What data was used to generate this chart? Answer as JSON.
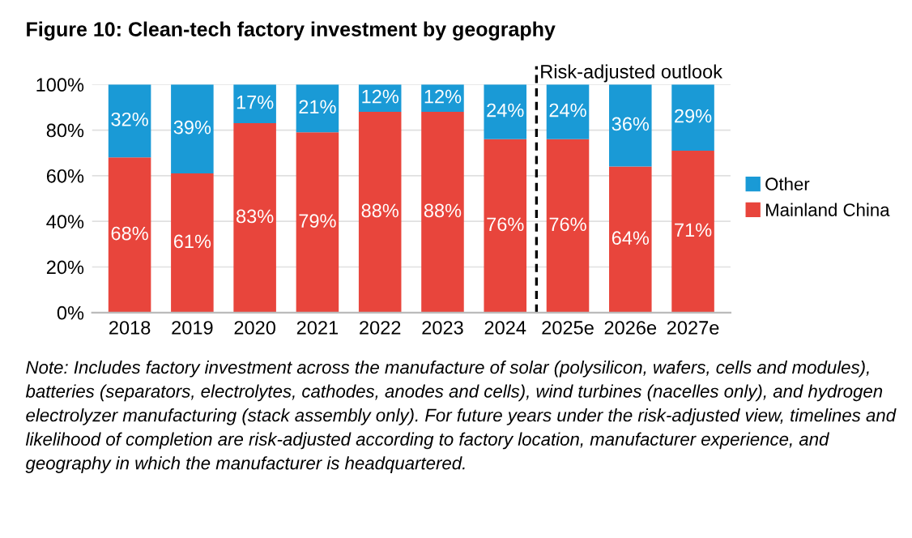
{
  "chart_data": {
    "type": "bar",
    "title": "Figure 10: Clean-tech factory investment by geography",
    "stacked": true,
    "x": [
      2018,
      2019,
      2020,
      2021,
      2022,
      2023,
      2024,
      2025,
      2026,
      2027
    ],
    "xlim": [
      2017.4,
      2027.6
    ],
    "xticks": [
      2018,
      2019,
      2020,
      2021,
      2022,
      2023,
      2024,
      {
        "value": 2025,
        "label": "2025e"
      },
      {
        "value": 2026,
        "label": "2026e"
      },
      {
        "value": 2027,
        "label": "2027e"
      }
    ],
    "series": [
      {
        "name": "Mainland China",
        "color": "#e8453c",
        "values": [
          68,
          61,
          83,
          79,
          88,
          88,
          76,
          76,
          64,
          71
        ],
        "value_labels": [
          "68%",
          "61%",
          "83%",
          "79%",
          "88%",
          "88%",
          "76%",
          "76%",
          "64%",
          "71%"
        ]
      },
      {
        "name": "Other",
        "color": "#1a9ad6",
        "values": [
          32,
          39,
          17,
          21,
          12,
          12,
          24,
          24,
          36,
          29
        ],
        "value_labels": [
          "32%",
          "39%",
          "17%",
          "21%",
          "12%",
          "12%",
          "24%",
          "24%",
          "36%",
          "29%"
        ]
      }
    ],
    "ylim": [
      0,
      100
    ],
    "yticks": [
      {
        "value": 0,
        "label": "0%"
      },
      {
        "value": 20,
        "label": "20%"
      },
      {
        "value": 40,
        "label": "40%"
      },
      {
        "value": 60,
        "label": "60%"
      },
      {
        "value": 80,
        "label": "80%"
      },
      {
        "value": 100,
        "label": "100%"
      }
    ],
    "grid": "y",
    "legend": "right",
    "ref_lines": [
      {
        "axis": "x",
        "value": 2024.5,
        "label": "Risk-adjusted outlook",
        "line_style": "dashed",
        "color": "#000000"
      }
    ],
    "annotations": [
      "Note: Includes factory investment across the manufacture of solar (polysilicon, wafers, cells and modules), batteries (separators, electrolytes, cathodes, anodes and cells), wind turbines (nacelles only), and hydrogen electrolyzer manufacturing (stack assembly only). For future years under the risk-adjusted view, timelines and likelihood of completion are risk-adjusted according to factory location, manufacturer experience, and geography in which the manufacturer is headquartered."
    ]
  }
}
